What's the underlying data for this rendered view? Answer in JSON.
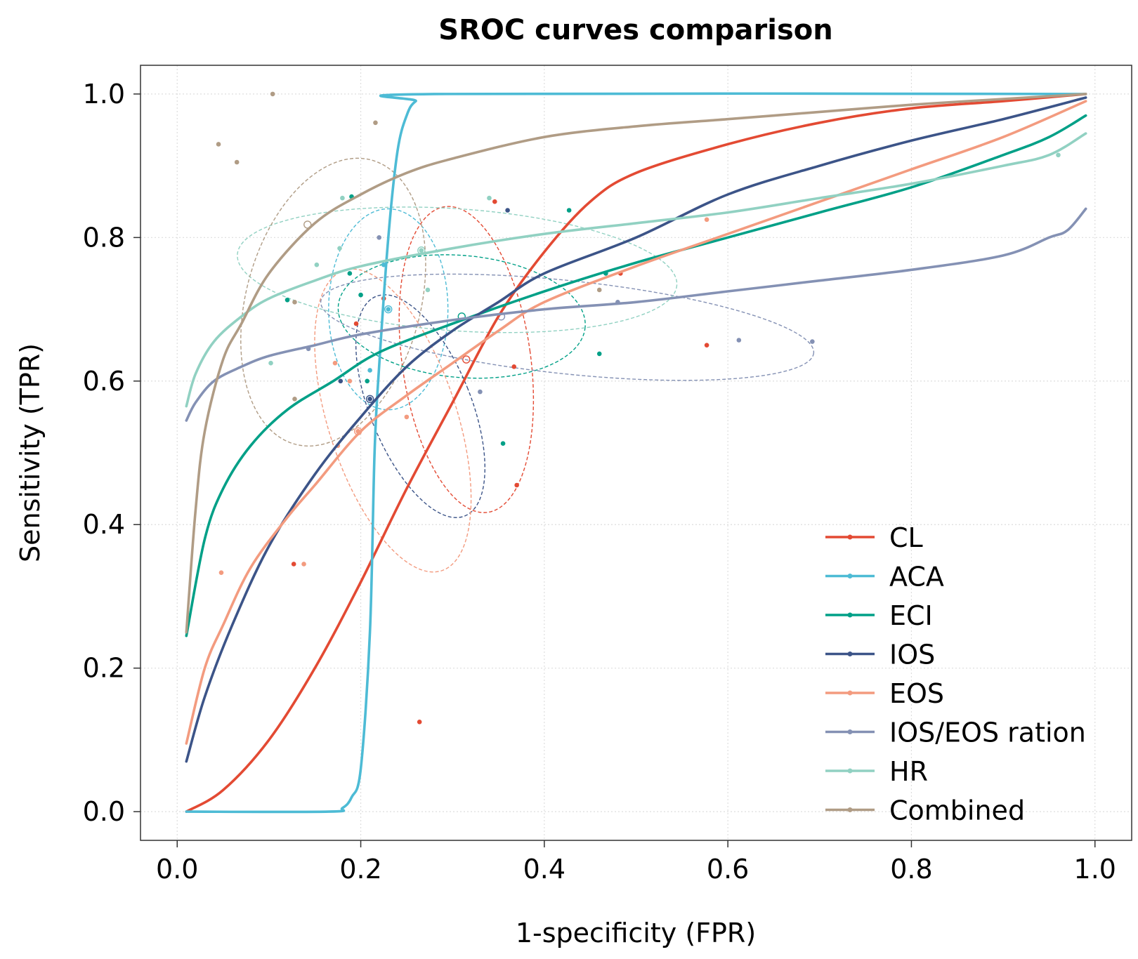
{
  "chart_data": {
    "type": "line",
    "title": "SROC curves comparison",
    "xlabel": "1-specificity (FPR)",
    "ylabel": "Sensitivity (TPR)",
    "xlim": [
      -0.04,
      1.04
    ],
    "ylim": [
      -0.04,
      1.04
    ],
    "xticks": [
      "0.0",
      "0.2",
      "0.4",
      "0.6",
      "0.8",
      "1.0"
    ],
    "yticks": [
      "0.0",
      "0.2",
      "0.4",
      "0.6",
      "0.8",
      "1.0"
    ],
    "grid": true,
    "legend_position": "bottom-right",
    "series": [
      {
        "name": "CL",
        "color": "#e34a33",
        "curve": [
          [
            0.01,
            0.0
          ],
          [
            0.05,
            0.03
          ],
          [
            0.1,
            0.1
          ],
          [
            0.15,
            0.2
          ],
          [
            0.2,
            0.32
          ],
          [
            0.25,
            0.45
          ],
          [
            0.3,
            0.57
          ],
          [
            0.35,
            0.69
          ],
          [
            0.4,
            0.78
          ],
          [
            0.45,
            0.85
          ],
          [
            0.5,
            0.89
          ],
          [
            0.6,
            0.93
          ],
          [
            0.7,
            0.96
          ],
          [
            0.8,
            0.98
          ],
          [
            0.9,
            0.99
          ],
          [
            0.99,
            1.0
          ]
        ],
        "points": [
          [
            0.195,
            0.68
          ],
          [
            0.225,
            0.715
          ],
          [
            0.346,
            0.85
          ],
          [
            0.367,
            0.62
          ],
          [
            0.37,
            0.455
          ],
          [
            0.483,
            0.75
          ],
          [
            0.577,
            0.65
          ],
          [
            0.127,
            0.345
          ],
          [
            0.264,
            0.125
          ]
        ],
        "ellipse": {
          "cx": 0.315,
          "cy": 0.63,
          "rx": 0.07,
          "ry": 0.215,
          "angle": 8
        },
        "center": [
          0.315,
          0.63
        ]
      },
      {
        "name": "ACA",
        "color": "#4dbbd5",
        "curve": [
          [
            0.01,
            0.0
          ],
          [
            0.165,
            0.0
          ],
          [
            0.18,
            0.005
          ],
          [
            0.19,
            0.02
          ],
          [
            0.2,
            0.06
          ],
          [
            0.21,
            0.25
          ],
          [
            0.215,
            0.5
          ],
          [
            0.22,
            0.62
          ],
          [
            0.23,
            0.8
          ],
          [
            0.24,
            0.92
          ],
          [
            0.25,
            0.97
          ],
          [
            0.26,
            0.99
          ],
          [
            0.28,
            1.0
          ],
          [
            0.99,
            1.0
          ]
        ],
        "points": [
          [
            0.21,
            0.615
          ],
          [
            0.225,
            0.762
          ],
          [
            0.23,
            0.7
          ]
        ],
        "ellipse": {
          "cx": 0.23,
          "cy": 0.7,
          "rx": 0.065,
          "ry": 0.14,
          "angle": 0
        },
        "center": [
          0.23,
          0.7
        ]
      },
      {
        "name": "ECI",
        "color": "#00a087",
        "curve": [
          [
            0.01,
            0.245
          ],
          [
            0.03,
            0.38
          ],
          [
            0.05,
            0.45
          ],
          [
            0.08,
            0.51
          ],
          [
            0.12,
            0.56
          ],
          [
            0.17,
            0.6
          ],
          [
            0.22,
            0.64
          ],
          [
            0.3,
            0.68
          ],
          [
            0.4,
            0.725
          ],
          [
            0.5,
            0.765
          ],
          [
            0.6,
            0.8
          ],
          [
            0.7,
            0.835
          ],
          [
            0.8,
            0.87
          ],
          [
            0.9,
            0.915
          ],
          [
            0.95,
            0.94
          ],
          [
            0.99,
            0.97
          ]
        ],
        "points": [
          [
            0.19,
            0.857
          ],
          [
            0.188,
            0.75
          ],
          [
            0.12,
            0.713
          ],
          [
            0.207,
            0.6
          ],
          [
            0.355,
            0.513
          ],
          [
            0.46,
            0.638
          ],
          [
            0.427,
            0.838
          ],
          [
            0.467,
            0.75
          ],
          [
            0.2,
            0.72
          ]
        ],
        "ellipse": {
          "cx": 0.31,
          "cy": 0.69,
          "rx": 0.135,
          "ry": 0.085,
          "angle": -5
        },
        "center": [
          0.31,
          0.69
        ]
      },
      {
        "name": "IOS",
        "color": "#3c5488",
        "curve": [
          [
            0.01,
            0.07
          ],
          [
            0.03,
            0.16
          ],
          [
            0.06,
            0.26
          ],
          [
            0.1,
            0.37
          ],
          [
            0.15,
            0.47
          ],
          [
            0.2,
            0.55
          ],
          [
            0.25,
            0.62
          ],
          [
            0.3,
            0.67
          ],
          [
            0.35,
            0.71
          ],
          [
            0.4,
            0.75
          ],
          [
            0.5,
            0.8
          ],
          [
            0.6,
            0.86
          ],
          [
            0.7,
            0.9
          ],
          [
            0.8,
            0.935
          ],
          [
            0.9,
            0.965
          ],
          [
            0.99,
            0.995
          ]
        ],
        "points": [
          [
            0.36,
            0.838
          ],
          [
            0.178,
            0.6
          ],
          [
            0.21,
            0.575
          ]
        ],
        "ellipse": {
          "cx": 0.265,
          "cy": 0.565,
          "rx": 0.055,
          "ry": 0.165,
          "angle": 22
        },
        "center": [
          0.21,
          0.575
        ]
      },
      {
        "name": "EOS",
        "color": "#f39b7f",
        "curve": [
          [
            0.01,
            0.095
          ],
          [
            0.03,
            0.2
          ],
          [
            0.05,
            0.26
          ],
          [
            0.08,
            0.34
          ],
          [
            0.12,
            0.41
          ],
          [
            0.15,
            0.455
          ],
          [
            0.2,
            0.53
          ],
          [
            0.25,
            0.58
          ],
          [
            0.3,
            0.625
          ],
          [
            0.35,
            0.67
          ],
          [
            0.4,
            0.71
          ],
          [
            0.5,
            0.76
          ],
          [
            0.6,
            0.805
          ],
          [
            0.7,
            0.85
          ],
          [
            0.8,
            0.895
          ],
          [
            0.9,
            0.94
          ],
          [
            0.99,
            0.99
          ]
        ],
        "points": [
          [
            0.048,
            0.333
          ],
          [
            0.138,
            0.345
          ],
          [
            0.172,
            0.625
          ],
          [
            0.175,
            0.51
          ],
          [
            0.188,
            0.6
          ],
          [
            0.25,
            0.55
          ],
          [
            0.577,
            0.825
          ],
          [
            0.197,
            0.53
          ]
        ],
        "ellipse": {
          "cx": 0.235,
          "cy": 0.545,
          "rx": 0.07,
          "ry": 0.22,
          "angle": 18
        },
        "center": [
          0.197,
          0.53
        ]
      },
      {
        "name": "IOS/EOS ration",
        "color": "#8491b4",
        "curve": [
          [
            0.01,
            0.545
          ],
          [
            0.02,
            0.57
          ],
          [
            0.04,
            0.6
          ],
          [
            0.07,
            0.62
          ],
          [
            0.1,
            0.635
          ],
          [
            0.15,
            0.65
          ],
          [
            0.2,
            0.665
          ],
          [
            0.3,
            0.685
          ],
          [
            0.4,
            0.7
          ],
          [
            0.5,
            0.71
          ],
          [
            0.6,
            0.725
          ],
          [
            0.7,
            0.74
          ],
          [
            0.8,
            0.755
          ],
          [
            0.9,
            0.775
          ],
          [
            0.95,
            0.8
          ],
          [
            0.97,
            0.81
          ],
          [
            0.99,
            0.84
          ]
        ],
        "points": [
          [
            0.143,
            0.645
          ],
          [
            0.22,
            0.8
          ],
          [
            0.33,
            0.585
          ],
          [
            0.612,
            0.657
          ],
          [
            0.692,
            0.655
          ],
          [
            0.48,
            0.71
          ]
        ],
        "ellipse": {
          "cx": 0.425,
          "cy": 0.675,
          "rx": 0.27,
          "ry": 0.065,
          "angle": -6
        },
        "center": [
          0.353,
          0.69
        ]
      },
      {
        "name": "HR",
        "color": "#91d1c2",
        "curve": [
          [
            0.01,
            0.565
          ],
          [
            0.02,
            0.61
          ],
          [
            0.04,
            0.655
          ],
          [
            0.07,
            0.69
          ],
          [
            0.1,
            0.715
          ],
          [
            0.15,
            0.74
          ],
          [
            0.2,
            0.76
          ],
          [
            0.3,
            0.785
          ],
          [
            0.4,
            0.805
          ],
          [
            0.5,
            0.82
          ],
          [
            0.6,
            0.835
          ],
          [
            0.7,
            0.855
          ],
          [
            0.8,
            0.875
          ],
          [
            0.9,
            0.9
          ],
          [
            0.95,
            0.915
          ],
          [
            0.99,
            0.945
          ]
        ],
        "points": [
          [
            0.102,
            0.625
          ],
          [
            0.152,
            0.762
          ],
          [
            0.177,
            0.785
          ],
          [
            0.18,
            0.855
          ],
          [
            0.273,
            0.727
          ],
          [
            0.34,
            0.855
          ],
          [
            0.96,
            0.915
          ],
          [
            0.266,
            0.782
          ]
        ],
        "ellipse": {
          "cx": 0.305,
          "cy": 0.755,
          "rx": 0.24,
          "ry": 0.085,
          "angle": -4
        },
        "center": [
          0.266,
          0.782
        ]
      },
      {
        "name": "Combined",
        "color": "#b09c85",
        "curve": [
          [
            0.01,
            0.25
          ],
          [
            0.02,
            0.42
          ],
          [
            0.03,
            0.53
          ],
          [
            0.05,
            0.63
          ],
          [
            0.07,
            0.68
          ],
          [
            0.1,
            0.75
          ],
          [
            0.15,
            0.82
          ],
          [
            0.2,
            0.86
          ],
          [
            0.25,
            0.89
          ],
          [
            0.3,
            0.91
          ],
          [
            0.4,
            0.94
          ],
          [
            0.5,
            0.955
          ],
          [
            0.6,
            0.965
          ],
          [
            0.7,
            0.975
          ],
          [
            0.8,
            0.985
          ],
          [
            0.9,
            0.993
          ],
          [
            0.99,
            1.0
          ]
        ],
        "points": [
          [
            0.045,
            0.93
          ],
          [
            0.065,
            0.905
          ],
          [
            0.104,
            1.0
          ],
          [
            0.216,
            0.96
          ],
          [
            0.128,
            0.575
          ],
          [
            0.128,
            0.71
          ],
          [
            0.46,
            0.727
          ]
        ],
        "ellipse": {
          "cx": 0.17,
          "cy": 0.71,
          "rx": 0.095,
          "ry": 0.205,
          "angle": -15
        },
        "center": [
          0.142,
          0.818
        ]
      }
    ]
  }
}
